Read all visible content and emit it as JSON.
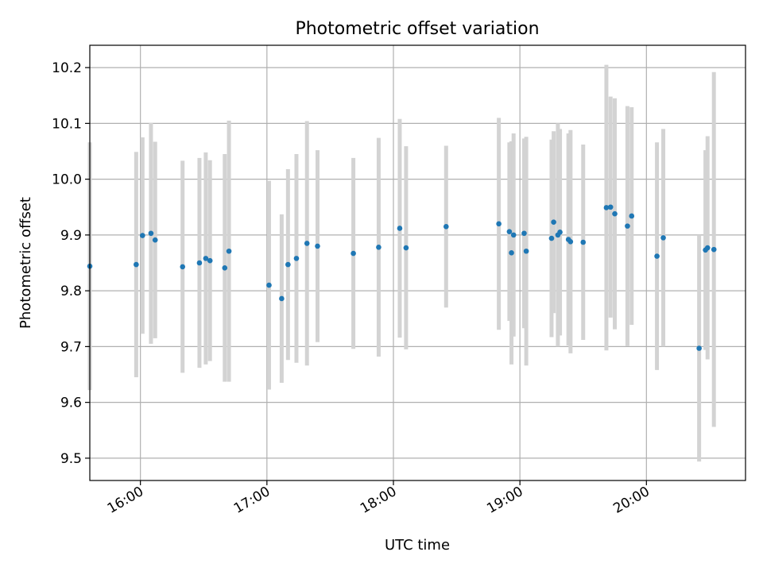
{
  "chart_data": {
    "type": "scatter",
    "title": "Photometric offset variation",
    "xlabel": "UTC time",
    "ylabel": "Photometric offset",
    "x_axis_kind": "time",
    "xlim": [
      "15:36",
      "20:47"
    ],
    "ylim": [
      9.46,
      10.24
    ],
    "x_ticks": [
      "16:00",
      "17:00",
      "18:00",
      "19:00",
      "20:00"
    ],
    "y_ticks": [
      9.5,
      9.6,
      9.7,
      9.8,
      9.9,
      10.0,
      10.1,
      10.2
    ],
    "y_tick_labels": [
      "9.5",
      "9.6",
      "9.7",
      "9.8",
      "9.9",
      "10.0",
      "10.1",
      "10.2"
    ],
    "grid": true,
    "legend": "none",
    "colors": {
      "point": "#1f77b4",
      "errorbar": "#d3d3d3",
      "grid": "#b0b0b0",
      "axes": "#000000"
    },
    "series": [
      {
        "x": [
          "15:36",
          "15:58",
          "16:01",
          "16:05",
          "16:07",
          "16:20",
          "16:28",
          "16:31",
          "16:33",
          "16:40",
          "16:42",
          "17:01",
          "17:07",
          "17:10",
          "17:14",
          "17:19",
          "17:24",
          "17:41",
          "17:53",
          "18:03",
          "18:06",
          "18:25",
          "18:50",
          "18:55",
          "18:56",
          "18:57",
          "19:02",
          "19:03",
          "19:15",
          "19:16",
          "19:18",
          "19:19",
          "19:23",
          "19:24",
          "19:30",
          "19:41",
          "19:43",
          "19:45",
          "19:51",
          "19:53",
          "20:05",
          "20:08",
          "20:25",
          "20:28",
          "20:29",
          "20:32"
        ],
        "y": [
          9.844,
          9.847,
          9.899,
          9.903,
          9.891,
          9.843,
          9.85,
          9.858,
          9.854,
          9.841,
          9.871,
          9.81,
          9.786,
          9.847,
          9.858,
          9.885,
          9.88,
          9.867,
          9.878,
          9.912,
          9.877,
          9.915,
          9.92,
          9.906,
          9.868,
          9.9,
          9.903,
          9.871,
          9.894,
          9.923,
          9.9,
          9.905,
          9.892,
          9.888,
          9.887,
          9.949,
          9.95,
          9.938,
          9.916,
          9.934,
          9.862,
          9.895,
          9.697,
          9.873,
          9.877,
          9.874
        ],
        "yerr": [
          0.222,
          0.202,
          0.176,
          0.198,
          0.176,
          0.19,
          0.188,
          0.19,
          0.18,
          0.204,
          0.234,
          0.187,
          0.151,
          0.171,
          0.187,
          0.219,
          0.172,
          0.171,
          0.196,
          0.196,
          0.182,
          0.145,
          0.19,
          0.16,
          0.2,
          0.182,
          0.17,
          0.205,
          0.177,
          0.163,
          0.2,
          0.185,
          0.19,
          0.2,
          0.175,
          0.256,
          0.198,
          0.207,
          0.215,
          0.195,
          0.204,
          0.195,
          0.203,
          0.179,
          0.2,
          0.318
        ]
      }
    ]
  }
}
